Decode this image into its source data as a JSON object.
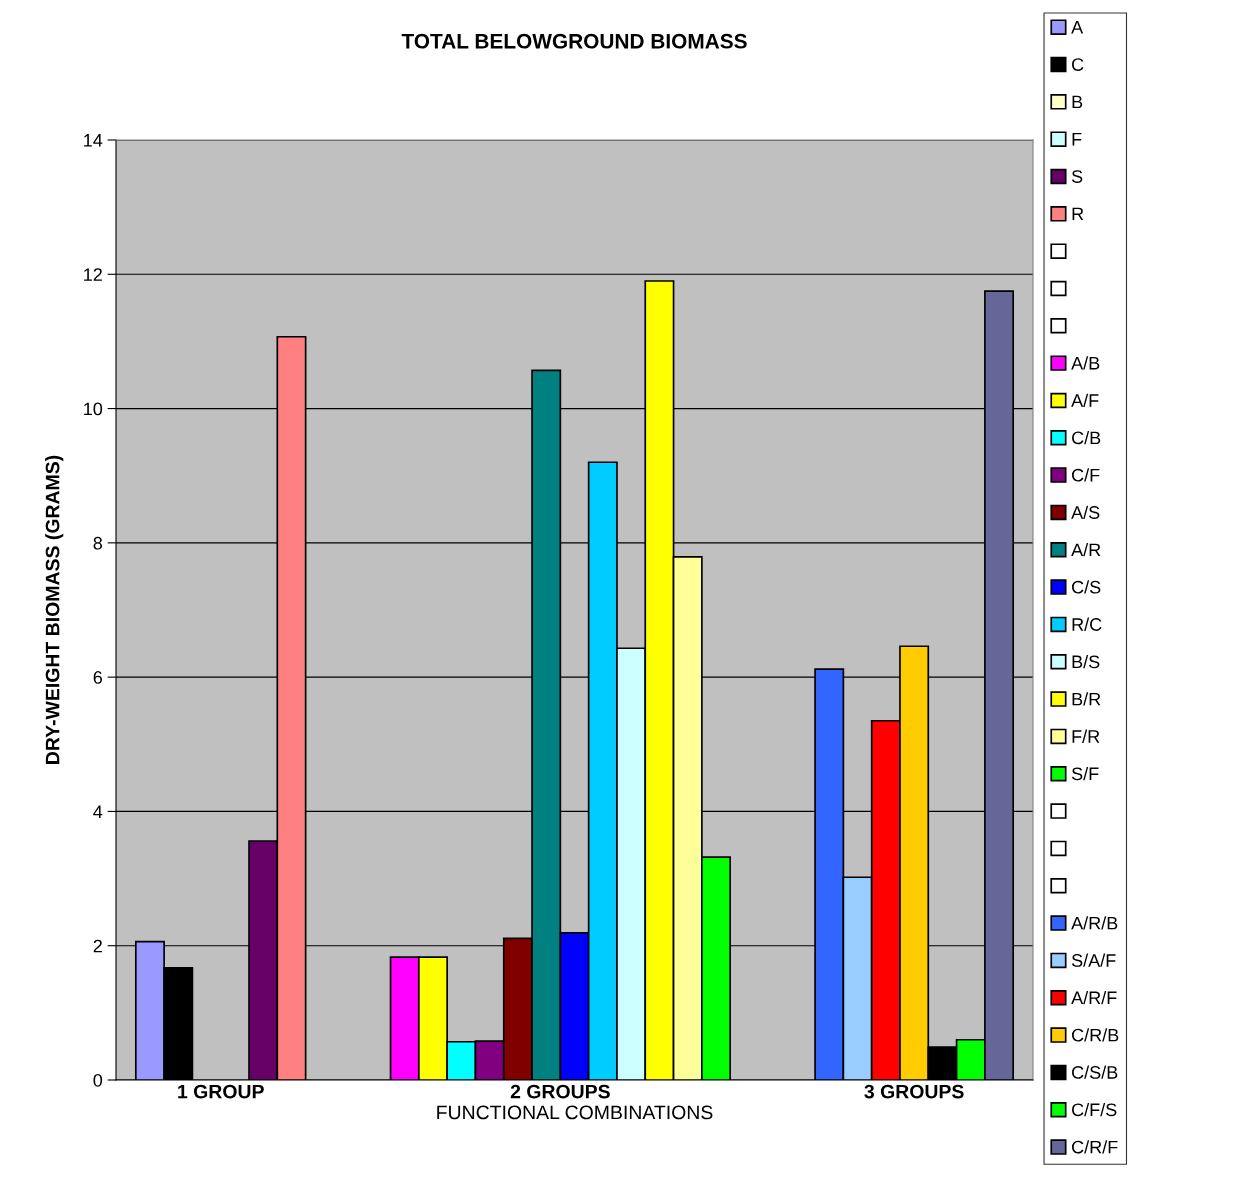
{
  "chart_data": {
    "type": "bar",
    "title": "TOTAL BELOWGROUND BIOMASS",
    "xlabel": "FUNCTIONAL COMBINATIONS",
    "ylabel": "DRY-WEIGHT BIOMASS (GRAMS)",
    "categories": [
      null
    ],
    "annotations": [
      "1 GROUP",
      "2 GROUPS",
      "3 GROUPS"
    ],
    "series": [
      {
        "name": "A",
        "color": "#9999ff",
        "values": [
          2.06
        ]
      },
      {
        "name": "C",
        "color": "#000000",
        "values": [
          1.67
        ]
      },
      {
        "name": "B",
        "color": "#ffffcc",
        "values": [
          null
        ]
      },
      {
        "name": "F",
        "color": "#ccffff",
        "values": [
          null
        ]
      },
      {
        "name": "S",
        "color": "#660066",
        "values": [
          3.56
        ]
      },
      {
        "name": "R",
        "color": "#ff8080",
        "values": [
          11.07
        ]
      },
      {
        "color": "#ffffff",
        "values": [
          null
        ]
      },
      {
        "color": "#ffffff",
        "values": [
          null
        ]
      },
      {
        "color": "#ffffff",
        "values": [
          null
        ]
      },
      {
        "name": "A/B",
        "color": "#ff00ff",
        "values": [
          1.83
        ]
      },
      {
        "name": "A/F",
        "color": "#ffff00",
        "values": [
          1.83
        ]
      },
      {
        "name": "C/B",
        "color": "#00ffff",
        "values": [
          0.57
        ]
      },
      {
        "name": "C/F",
        "color": "#800080",
        "values": [
          0.58
        ]
      },
      {
        "name": "A/S",
        "color": "#800000",
        "values": [
          2.11
        ]
      },
      {
        "name": "A/R",
        "color": "#008080",
        "values": [
          10.57
        ]
      },
      {
        "name": "C/S",
        "color": "#0000ff",
        "values": [
          2.19
        ]
      },
      {
        "name": "R/C",
        "color": "#00ccff",
        "values": [
          9.2
        ]
      },
      {
        "name": "B/S",
        "color": "#ccffff",
        "values": [
          6.43
        ]
      },
      {
        "name": "B/R",
        "color": "#ffff00",
        "values": [
          11.9
        ]
      },
      {
        "name": "F/R",
        "color": "#ffff99",
        "values": [
          7.79
        ]
      },
      {
        "name": "S/F",
        "color": "#00ff00",
        "values": [
          3.32
        ]
      },
      {
        "color": "#ffffff",
        "values": [
          null
        ]
      },
      {
        "color": "#ffffff",
        "values": [
          null
        ]
      },
      {
        "color": "#ffffff",
        "values": [
          null
        ]
      },
      {
        "name": "A/R/B",
        "color": "#3366ff",
        "values": [
          6.12
        ]
      },
      {
        "name": "S/A/F",
        "color": "#99ccff",
        "values": [
          3.02
        ]
      },
      {
        "name": "A/R/F",
        "color": "#ff0000",
        "values": [
          5.35
        ]
      },
      {
        "name": "C/R/B",
        "color": "#ffcc00",
        "values": [
          6.46
        ]
      },
      {
        "name": "C/S/B",
        "color": "#000000",
        "values": [
          0.49
        ]
      },
      {
        "name": "C/F/S",
        "color": "#00ff00",
        "values": [
          0.6
        ]
      },
      {
        "name": "C/R/F",
        "color": "#666699",
        "values": [
          11.75
        ]
      }
    ],
    "ylim": [
      0,
      14
    ],
    "yticks": [
      0,
      2,
      4,
      6,
      8,
      10,
      12,
      14
    ],
    "grid": "y",
    "legend": "right"
  }
}
